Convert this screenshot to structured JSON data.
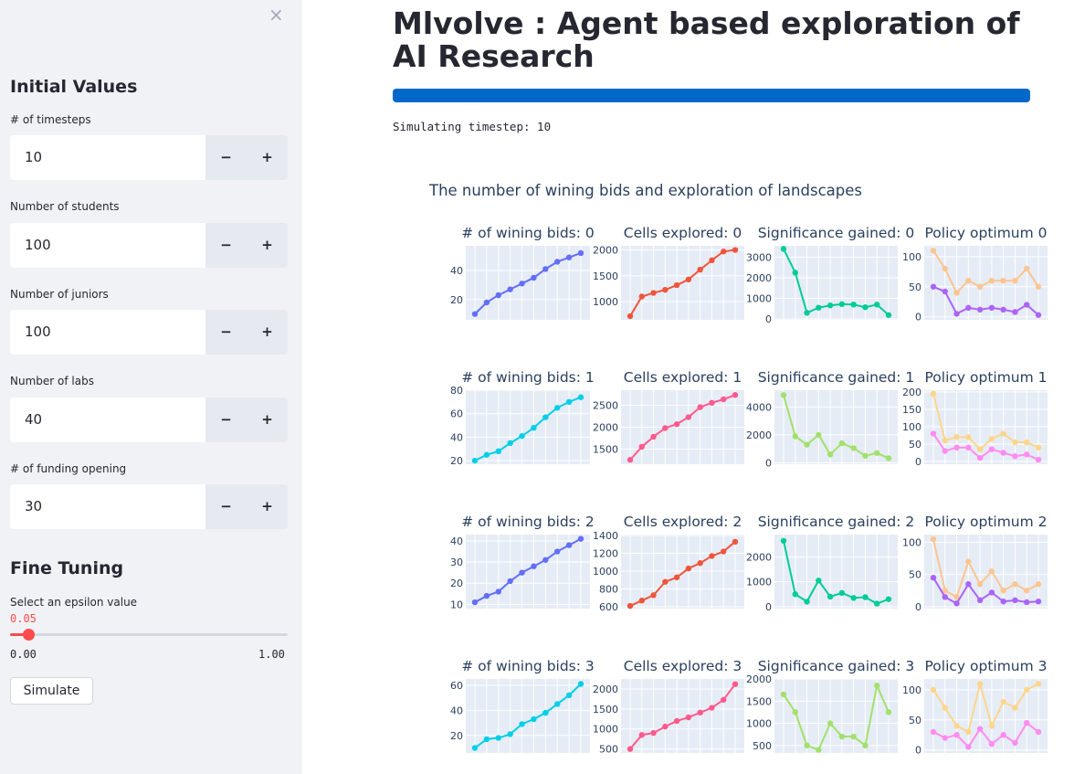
{
  "sidebar": {
    "close_glyph": "×",
    "initial_values_heading": "Initial Values",
    "inputs": [
      {
        "label": "# of timesteps",
        "value": "10",
        "minus": "−",
        "plus": "+"
      },
      {
        "label": "Number of students",
        "value": "100",
        "minus": "−",
        "plus": "+"
      },
      {
        "label": "Number of juniors",
        "value": "100",
        "minus": "−",
        "plus": "+"
      },
      {
        "label": "Number of labs",
        "value": "40",
        "minus": "−",
        "plus": "+"
      },
      {
        "label": "# of funding opening",
        "value": "30",
        "minus": "−",
        "plus": "+"
      }
    ],
    "fine_tuning_heading": "Fine Tuning",
    "epsilon": {
      "label": "Select an epsilon value",
      "value": "0.05",
      "min": "0.00",
      "max": "1.00",
      "fraction": 0.05
    },
    "simulate_label": "Simulate"
  },
  "main": {
    "title": "Mlvolve : Agent based exploration of AI Research",
    "progress_fraction": 1.0,
    "status": "Simulating timestep: 10",
    "figure_title": "The number of wining bids and exploration of landscapes"
  },
  "colors": {
    "accent": "#ff4b4b",
    "progress": "#0068c9",
    "plot_bg": "#e5ecf6",
    "text": "#2a3f5f",
    "bids_even": "#636efa",
    "bids_odd": "#00cfe8",
    "cells_even": "#ef553b",
    "cells_odd": "#ff5a8c",
    "sig_even": "#00cc96",
    "sig_odd": "#a3e06c",
    "pol_a_even": "#fcc591",
    "pol_b_even": "#ab63fa",
    "pol_a_odd": "#fcd68c",
    "pol_b_odd": "#ff8cf0"
  },
  "chart_data": [
    {
      "type": "line",
      "title": "# of wining bids: 0",
      "x": [
        1,
        2,
        3,
        4,
        5,
        6,
        7,
        8,
        9,
        10
      ],
      "series": [
        {
          "values": [
            10,
            18,
            23,
            27,
            31,
            35,
            41,
            46,
            49,
            52
          ]
        }
      ],
      "ylim": [
        6,
        57
      ],
      "yticks": [
        20,
        40
      ]
    },
    {
      "type": "line",
      "title": "Cells explored: 0",
      "x": [
        1,
        2,
        3,
        4,
        5,
        6,
        7,
        8,
        9,
        10
      ],
      "series": [
        {
          "values": [
            720,
            1100,
            1170,
            1230,
            1320,
            1430,
            1620,
            1800,
            1970,
            2000
          ]
        }
      ],
      "ylim": [
        650,
        2080
      ],
      "yticks": [
        1000,
        1500,
        2000
      ]
    },
    {
      "type": "line",
      "title": "Significance gained: 0",
      "x": [
        1,
        2,
        3,
        4,
        5,
        6,
        7,
        8,
        9,
        10
      ],
      "series": [
        {
          "values": [
            3400,
            2250,
            300,
            550,
            660,
            720,
            700,
            570,
            700,
            190
          ]
        }
      ],
      "ylim": [
        -40,
        3550
      ],
      "yticks": [
        0,
        1000,
        2000,
        3000
      ]
    },
    {
      "type": "line",
      "title": "Policy optimum 0",
      "x": [
        1,
        2,
        3,
        4,
        5,
        6,
        7,
        8,
        9,
        10
      ],
      "series": [
        {
          "values": [
            110,
            80,
            40,
            60,
            50,
            60,
            60,
            60,
            80,
            50
          ]
        },
        {
          "values": [
            50,
            42,
            5,
            15,
            12,
            15,
            12,
            8,
            20,
            3
          ]
        }
      ],
      "ylim": [
        -5,
        118
      ],
      "yticks": [
        0,
        50,
        100
      ]
    },
    {
      "type": "line",
      "title": "# of wining bids: 1",
      "x": [
        1,
        2,
        3,
        4,
        5,
        6,
        7,
        8,
        9,
        10
      ],
      "series": [
        {
          "values": [
            20,
            25,
            28,
            35,
            41,
            48,
            57,
            65,
            70,
            74
          ]
        }
      ],
      "ylim": [
        17,
        80
      ],
      "yticks": [
        20,
        40,
        60,
        80
      ]
    },
    {
      "type": "line",
      "title": "Cells explored: 1",
      "x": [
        1,
        2,
        3,
        4,
        5,
        6,
        7,
        8,
        9,
        10
      ],
      "series": [
        {
          "values": [
            1250,
            1550,
            1780,
            1980,
            2070,
            2230,
            2460,
            2560,
            2640,
            2740
          ]
        }
      ],
      "ylim": [
        1150,
        2850
      ],
      "yticks": [
        1500,
        2000,
        2500
      ]
    },
    {
      "type": "line",
      "title": "Significance gained: 1",
      "x": [
        1,
        2,
        3,
        4,
        5,
        6,
        7,
        8,
        9,
        10
      ],
      "series": [
        {
          "values": [
            4850,
            1900,
            1300,
            2000,
            600,
            1400,
            1050,
            500,
            700,
            330
          ]
        }
      ],
      "ylim": [
        -100,
        5200
      ],
      "yticks": [
        0,
        2000,
        4000
      ]
    },
    {
      "type": "line",
      "title": "Policy optimum 1",
      "x": [
        1,
        2,
        3,
        4,
        5,
        6,
        7,
        8,
        9,
        10
      ],
      "series": [
        {
          "values": [
            195,
            60,
            70,
            70,
            35,
            65,
            80,
            55,
            55,
            40
          ]
        },
        {
          "values": [
            80,
            30,
            40,
            40,
            10,
            35,
            25,
            15,
            20,
            5
          ]
        }
      ],
      "ylim": [
        -8,
        205
      ],
      "yticks": [
        0,
        50,
        100,
        150,
        200
      ]
    },
    {
      "type": "line",
      "title": "# of wining bids: 2",
      "x": [
        1,
        2,
        3,
        4,
        5,
        6,
        7,
        8,
        9,
        10
      ],
      "series": [
        {
          "values": [
            11,
            14,
            16,
            21,
            25,
            28,
            31,
            35,
            38,
            41
          ]
        }
      ],
      "ylim": [
        8,
        43
      ],
      "yticks": [
        10,
        20,
        30,
        40
      ]
    },
    {
      "type": "line",
      "title": "Cells explored: 2",
      "x": [
        1,
        2,
        3,
        4,
        5,
        6,
        7,
        8,
        9,
        10
      ],
      "series": [
        {
          "values": [
            610,
            670,
            730,
            880,
            930,
            1030,
            1090,
            1170,
            1220,
            1330
          ]
        }
      ],
      "ylim": [
        580,
        1410
      ],
      "yticks": [
        600,
        800,
        1000,
        1200,
        1400
      ]
    },
    {
      "type": "line",
      "title": "Significance gained: 2",
      "x": [
        1,
        2,
        3,
        4,
        5,
        6,
        7,
        8,
        9,
        10
      ],
      "series": [
        {
          "values": [
            2650,
            500,
            200,
            1050,
            400,
            550,
            350,
            380,
            120,
            300
          ]
        }
      ],
      "ylim": [
        -80,
        2900
      ],
      "yticks": [
        0,
        1000,
        2000
      ]
    },
    {
      "type": "line",
      "title": "Policy optimum 2",
      "x": [
        1,
        2,
        3,
        4,
        5,
        6,
        7,
        8,
        9,
        10
      ],
      "series": [
        {
          "values": [
            105,
            25,
            15,
            70,
            35,
            55,
            25,
            35,
            25,
            35
          ]
        },
        {
          "values": [
            45,
            15,
            5,
            35,
            10,
            22,
            8,
            10,
            7,
            8
          ]
        }
      ],
      "ylim": [
        -3,
        112
      ],
      "yticks": [
        0,
        50,
        100
      ]
    },
    {
      "type": "line",
      "title": "# of wining bids: 3",
      "x": [
        1,
        2,
        3,
        4,
        5,
        6,
        7,
        8,
        9,
        10
      ],
      "series": [
        {
          "values": [
            10,
            17,
            18,
            21,
            29,
            33,
            38,
            45,
            52,
            61
          ]
        }
      ],
      "ylim": [
        6,
        65
      ],
      "yticks": [
        20,
        40,
        60
      ]
    },
    {
      "type": "line",
      "title": "Cells explored: 3",
      "x": [
        1,
        2,
        3,
        4,
        5,
        6,
        7,
        8,
        9,
        10
      ],
      "series": [
        {
          "values": [
            500,
            850,
            900,
            1060,
            1200,
            1290,
            1410,
            1530,
            1730,
            2120
          ]
        }
      ],
      "ylim": [
        400,
        2250
      ],
      "yticks": [
        500,
        1000,
        1500,
        2000
      ]
    },
    {
      "type": "line",
      "title": "Significance gained: 3",
      "x": [
        1,
        2,
        3,
        4,
        5,
        6,
        7,
        8,
        9,
        10
      ],
      "series": [
        {
          "values": [
            1650,
            1250,
            500,
            400,
            1000,
            700,
            700,
            500,
            1850,
            1250
          ]
        }
      ],
      "ylim": [
        330,
        2000
      ],
      "yticks": [
        500,
        1000,
        1500,
        2000
      ]
    },
    {
      "type": "line",
      "title": "Policy optimum 3",
      "x": [
        1,
        2,
        3,
        4,
        5,
        6,
        7,
        8,
        9,
        10
      ],
      "series": [
        {
          "values": [
            100,
            70,
            40,
            30,
            110,
            40,
            80,
            70,
            100,
            110
          ]
        },
        {
          "values": [
            30,
            20,
            25,
            5,
            35,
            10,
            25,
            12,
            45,
            30
          ]
        }
      ],
      "ylim": [
        -5,
        118
      ],
      "yticks": [
        0,
        50,
        100
      ]
    }
  ]
}
